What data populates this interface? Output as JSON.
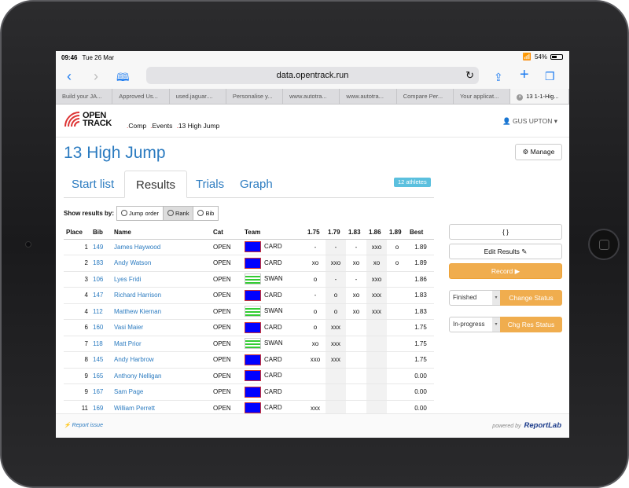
{
  "status_bar": {
    "time": "09:46",
    "date": "Tue 26 Mar",
    "battery": "54%",
    "battery_level": 0.54
  },
  "safari": {
    "url": "data.opentrack.run"
  },
  "browser_tabs": [
    {
      "label": "Build your JA..."
    },
    {
      "label": "Approved Us..."
    },
    {
      "label": "used.jaguar...."
    },
    {
      "label": "Personalise y..."
    },
    {
      "label": "www.autotra..."
    },
    {
      "label": "www.autotra..."
    },
    {
      "label": "Compare Per..."
    },
    {
      "label": "Your applicat..."
    },
    {
      "label": "13 1-1-Hig..."
    }
  ],
  "nav": {
    "logo_line1": "OPEN",
    "logo_line2": "TRACK",
    "links": [
      "Comp",
      "Events",
      "13 High Jump"
    ],
    "user": "GUS UPTON"
  },
  "page": {
    "title": "13 High Jump",
    "manage_label": "Manage",
    "tabs": [
      "Start list",
      "Results",
      "Trials",
      "Graph"
    ],
    "athletes_badge": "12 athletes",
    "show_by_label": "Show results by:",
    "show_by_options": [
      "Jump order",
      "Rank",
      "Bib"
    ]
  },
  "table": {
    "headers": [
      "Place",
      "Bib",
      "Name",
      "Cat",
      "Team",
      "1.75",
      "1.79",
      "1.83",
      "1.86",
      "1.89",
      "Best"
    ],
    "rows": [
      {
        "place": "1",
        "bib": "149",
        "name": "James Haywood",
        "cat": "OPEN",
        "team": "CARD",
        "h": [
          "-",
          "-",
          "-",
          "xxo",
          "o"
        ],
        "best": "1.89"
      },
      {
        "place": "2",
        "bib": "183",
        "name": "Andy Watson",
        "cat": "OPEN",
        "team": "CARD",
        "h": [
          "xo",
          "xxo",
          "xo",
          "xo",
          "o"
        ],
        "best": "1.89"
      },
      {
        "place": "3",
        "bib": "106",
        "name": "Lyes Fridi",
        "cat": "OPEN",
        "team": "SWAN",
        "h": [
          "o",
          "-",
          "-",
          "xxo",
          ""
        ],
        "best": "1.86"
      },
      {
        "place": "4",
        "bib": "147",
        "name": "Richard Harrison",
        "cat": "OPEN",
        "team": "CARD",
        "h": [
          "-",
          "o",
          "xo",
          "xxx",
          ""
        ],
        "best": "1.83"
      },
      {
        "place": "4",
        "bib": "112",
        "name": "Matthew Kiernan",
        "cat": "OPEN",
        "team": "SWAN",
        "h": [
          "o",
          "o",
          "xo",
          "xxx",
          ""
        ],
        "best": "1.83"
      },
      {
        "place": "6",
        "bib": "160",
        "name": "Vasi Maier",
        "cat": "OPEN",
        "team": "CARD",
        "h": [
          "o",
          "xxx",
          "",
          "",
          ""
        ],
        "best": "1.75"
      },
      {
        "place": "7",
        "bib": "118",
        "name": "Matt Prior",
        "cat": "OPEN",
        "team": "SWAN",
        "h": [
          "xo",
          "xxx",
          "",
          "",
          ""
        ],
        "best": "1.75"
      },
      {
        "place": "8",
        "bib": "145",
        "name": "Andy Harbrow",
        "cat": "OPEN",
        "team": "CARD",
        "h": [
          "xxo",
          "xxx",
          "",
          "",
          ""
        ],
        "best": "1.75"
      },
      {
        "place": "9",
        "bib": "165",
        "name": "Anthony Nelligan",
        "cat": "OPEN",
        "team": "CARD",
        "h": [
          "",
          "",
          "",
          "",
          ""
        ],
        "best": "0.00"
      },
      {
        "place": "9",
        "bib": "167",
        "name": "Sam Page",
        "cat": "OPEN",
        "team": "CARD",
        "h": [
          "",
          "",
          "",
          "",
          ""
        ],
        "best": "0.00"
      },
      {
        "place": "11",
        "bib": "169",
        "name": "William Perrett",
        "cat": "OPEN",
        "team": "CARD",
        "h": [
          "xxx",
          "",
          "",
          "",
          ""
        ],
        "best": "0.00"
      }
    ]
  },
  "sidebar": {
    "json_label": "{ }",
    "edit_results_label": "Edit Results",
    "record_label": "Record",
    "status_value": "Finished",
    "change_status_label": "Change Status",
    "res_status_value": "In-progress",
    "chg_res_status_label": "Chg Res Status"
  },
  "footer": {
    "report_issue": "Report issue",
    "powered_by": "powered by",
    "brand": "ReportLab"
  },
  "colors": {
    "link": "#2b7bc0",
    "orange": "#f0ad4e",
    "badge": "#5bc0de",
    "card_team": "#0000ff",
    "swan_team": "#33cc33"
  }
}
